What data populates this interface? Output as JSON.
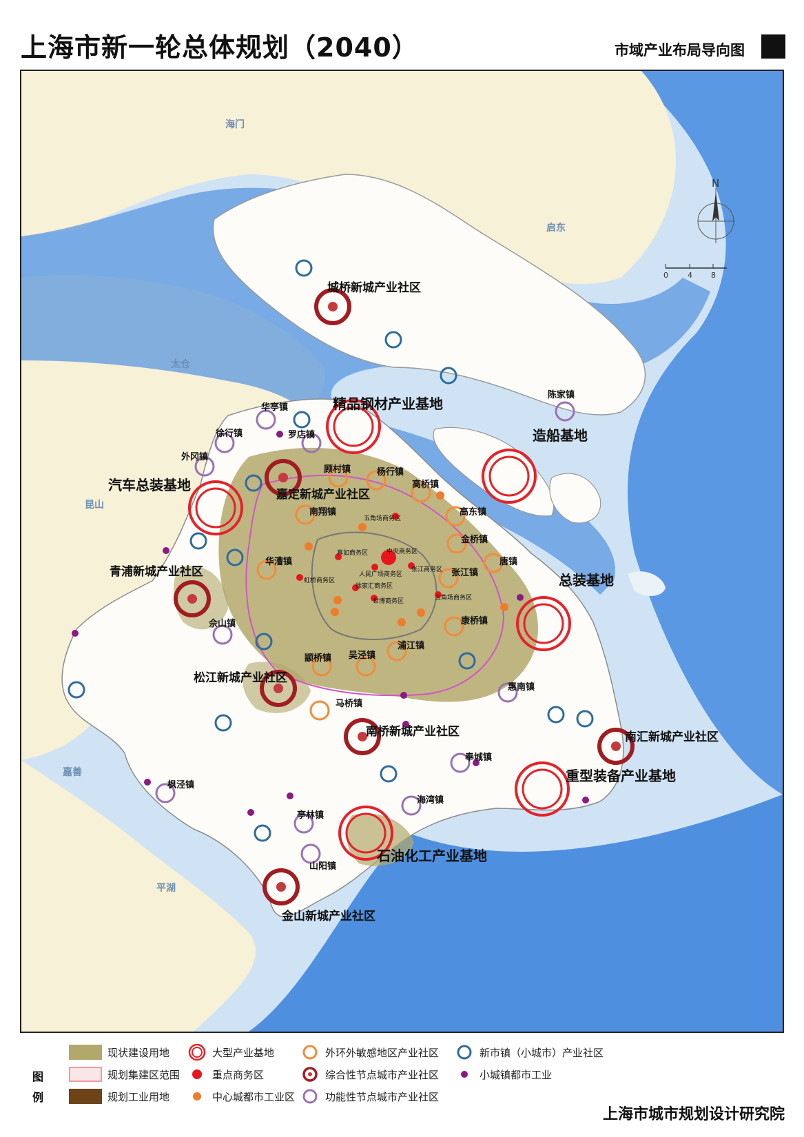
{
  "header": {
    "title": "上海市新一轮总体规划（2040）",
    "subtitle": "市域产业布局导向图"
  },
  "colors": {
    "sea": "#cfe3f4",
    "sea_deep": "#4c8edc",
    "river": "#5b97e0",
    "land_outside": "#f7f1d8",
    "land_shanghai": "#fdfcf8",
    "built": "#b3a86c",
    "planned_pink": "#f7d3d6",
    "industrial": "#6e4317",
    "large_base": "#e4222a",
    "business_area": "#e8161c",
    "urban_industry": "#ee7c2b",
    "outer_ring": "#f08c3c",
    "comprehensive_node": "#a11d22",
    "functional_node": "#9973b2",
    "new_town": "#2e6c9c",
    "small_town_industry": "#8b1a82"
  },
  "map": {
    "compass_label": "N",
    "scale_labels": [
      "0",
      "4",
      "8"
    ],
    "region_labels": [
      "海门",
      "启东",
      "太仓",
      "昆山",
      "嘉善",
      "平湖"
    ],
    "large_bases": [
      "精品钢材产业基地",
      "造船基地",
      "汽车总装基地",
      "总装基地",
      "重型装备产业基地",
      "石油化工产业基地"
    ],
    "comprehensive_nodes": [
      "城桥新城产业社区",
      "嘉定新城产业社区",
      "青浦新城产业社区",
      "松江新城产业社区",
      "南桥新城产业社区",
      "南汇新城产业社区",
      "金山新城产业社区"
    ],
    "outer_ring_towns": [
      "顾村镇",
      "杨行镇",
      "高桥镇",
      "南翔镇",
      "高东镇",
      "金桥镇",
      "华漕镇",
      "唐镇",
      "张江镇",
      "康桥镇",
      "浦江镇",
      "吴泾镇",
      "颛桥镇",
      "马桥镇"
    ],
    "functional_towns": [
      "华亭镇",
      "徐行镇",
      "外冈镇",
      "罗店镇",
      "陈家镇",
      "佘山镇",
      "惠南镇",
      "奉城镇",
      "海湾镇",
      "枫泾镇",
      "亭林镇",
      "山阳镇"
    ],
    "business_areas": [
      "中央商务区",
      "五角场商务区",
      "真如商务区",
      "虹桥商务区",
      "人民广场商务区",
      "张江商务区",
      "徐家汇商务区",
      "五角场商务区",
      "世博商务区"
    ]
  },
  "legend": {
    "heading": "图例",
    "items": [
      "现状建设用地",
      "规划集建区范围",
      "规划工业用地",
      "大型产业基地",
      "重点商务区",
      "中心城都市工业区",
      "外环外敏感地区产业社区",
      "综合性节点城市产业社区",
      "功能性节点城市产业社区",
      "新市镇（小城市）产业社区",
      "小城镇都市工业"
    ]
  },
  "footer": {
    "institute": "上海市城市规划设计研究院"
  }
}
